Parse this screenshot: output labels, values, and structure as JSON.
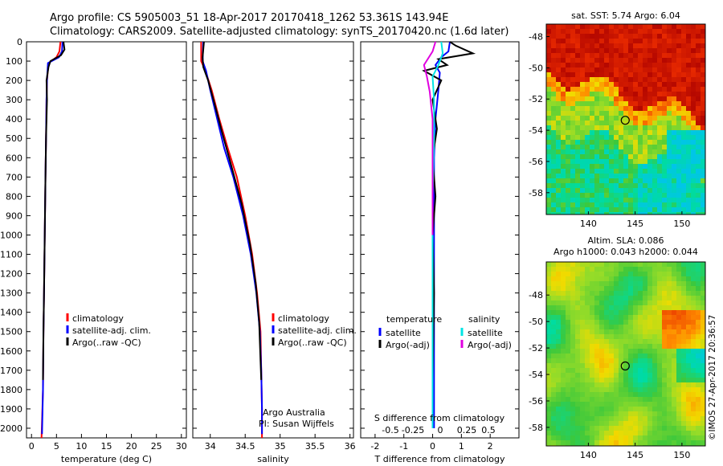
{
  "header": {
    "line1": "Argo profile: CS 5905003_51 18-Apr-2017 20170418_1262 53.361S 143.94E",
    "line2": "Climatology: CARS2009. Satellite-adjusted climatology: synTS_20170420.nc (1.6d later)"
  },
  "chart_data": [
    {
      "type": "line",
      "name": "temperature-panel",
      "xlabel": "temperature (deg C)",
      "ylabel": "",
      "xlim": [
        -1,
        31
      ],
      "ylim": [
        2050,
        0
      ],
      "xticks": [
        0,
        5,
        10,
        15,
        20,
        25,
        30
      ],
      "yticks": [
        0,
        100,
        200,
        300,
        400,
        500,
        600,
        700,
        800,
        900,
        1000,
        1100,
        1200,
        1300,
        1400,
        1500,
        1600,
        1700,
        1800,
        1900,
        2000
      ],
      "legend": [
        "climatology",
        "satellite-adj. clim.",
        "Argo(..raw -QC)"
      ],
      "series": [
        {
          "name": "climatology",
          "color": "#ff0000",
          "x": [
            5.8,
            5.6,
            5.0,
            3.4,
            3.1,
            3.0,
            2.9,
            2.8,
            2.7,
            2.6,
            2.5,
            2.4,
            2.3,
            2.0
          ],
          "y": [
            0,
            50,
            80,
            110,
            200,
            300,
            500,
            700,
            900,
            1100,
            1300,
            1500,
            1800,
            2050
          ]
        },
        {
          "name": "satellite-adj. clim.",
          "color": "#0000ff",
          "x": [
            6.2,
            6.1,
            5.5,
            3.3,
            3.1,
            3.0,
            2.9,
            2.8,
            2.7,
            2.6,
            2.5,
            2.4,
            2.3,
            2.1
          ],
          "y": [
            0,
            50,
            80,
            110,
            200,
            300,
            500,
            700,
            900,
            1100,
            1300,
            1500,
            1800,
            2030
          ]
        },
        {
          "name": "Argo(..raw -QC)",
          "color": "#000000",
          "x": [
            6.4,
            6.6,
            5.9,
            3.8,
            3.4,
            3.0,
            3.1,
            2.9,
            2.8,
            2.7,
            2.6,
            2.5,
            2.4,
            2.3
          ],
          "y": [
            0,
            40,
            70,
            100,
            130,
            200,
            300,
            500,
            700,
            900,
            1100,
            1300,
            1500,
            1750
          ]
        }
      ]
    },
    {
      "type": "line",
      "name": "salinity-panel",
      "xlabel": "salinity",
      "xlim": [
        33.75,
        36.05
      ],
      "ylim": [
        2050,
        0
      ],
      "xticks": [
        34,
        34.5,
        35,
        35.5,
        36
      ],
      "legend": [
        "climatology",
        "satellite-adj. clim.",
        "Argo(..raw -QC)"
      ],
      "annotations": [
        "Argo Australia",
        "PI: Susan Wijffels"
      ],
      "series": [
        {
          "name": "climatology",
          "color": "#ff0000",
          "x": [
            33.87,
            33.87,
            33.93,
            34.02,
            34.13,
            34.25,
            34.38,
            34.5,
            34.6,
            34.67,
            34.72,
            34.73,
            34.74,
            34.74
          ],
          "y": [
            0,
            100,
            150,
            250,
            400,
            550,
            700,
            900,
            1100,
            1300,
            1500,
            1700,
            1900,
            2050
          ]
        },
        {
          "name": "satellite-adj. clim.",
          "color": "#0000ff",
          "x": [
            33.9,
            33.89,
            33.94,
            34.0,
            34.1,
            34.2,
            34.33,
            34.47,
            34.58,
            34.66,
            34.71,
            34.73,
            34.74,
            34.74
          ],
          "y": [
            0,
            100,
            150,
            250,
            400,
            550,
            700,
            900,
            1100,
            1300,
            1500,
            1700,
            1900,
            2030
          ]
        },
        {
          "name": "Argo(..raw -QC)",
          "color": "#000000",
          "x": [
            33.91,
            33.89,
            33.9,
            33.97,
            34.06,
            34.17,
            34.3,
            34.45,
            34.57,
            34.65,
            34.7,
            34.72,
            34.73
          ],
          "y": [
            0,
            80,
            130,
            200,
            320,
            470,
            640,
            840,
            1050,
            1250,
            1450,
            1650,
            1750
          ]
        }
      ]
    },
    {
      "type": "line",
      "name": "difference-panel",
      "xlabel": "T difference from climatology",
      "top_axis_label": "S difference from climatology",
      "xlim": [
        -2.5,
        3.0
      ],
      "ylim": [
        2050,
        0
      ],
      "xticks": [
        -2,
        -1,
        0,
        1,
        2
      ],
      "top_xticks": [
        "-0.5",
        "-0.25",
        "0",
        "0.25",
        "0.5"
      ],
      "legend_headers": [
        "temperature",
        "salinity"
      ],
      "legend": [
        "satellite",
        "Argo(-adj)",
        "satellite",
        "Argo(-adj)"
      ],
      "series": [
        {
          "name": "satellite (temperature)",
          "color": "#0000ff",
          "x": [
            0.6,
            0.55,
            0.3,
            0.1,
            0.25,
            0.2,
            0.1,
            0.05,
            0.05,
            0.05,
            0.05,
            0.05,
            0.05
          ],
          "y": [
            0,
            50,
            80,
            120,
            160,
            250,
            400,
            600,
            900,
            1200,
            1500,
            1800,
            2000
          ]
        },
        {
          "name": "Argo(-adj) (temperature)",
          "color": "#000000",
          "x": [
            0.6,
            0.8,
            1.4,
            0.2,
            0.5,
            -0.3,
            0.3,
            0.0,
            0.15,
            0.0,
            0.1,
            0.0,
            0.05,
            0.0
          ],
          "y": [
            0,
            20,
            60,
            90,
            120,
            150,
            200,
            300,
            450,
            600,
            800,
            1000,
            1300,
            1750
          ]
        },
        {
          "name": "satellite (salinity)",
          "color": "#00e5e5",
          "x": [
            0.3,
            0.35,
            0.2,
            0.0,
            0.05,
            0.05,
            0.0,
            0.0,
            0.0,
            0.0
          ],
          "y": [
            0,
            60,
            120,
            180,
            300,
            500,
            800,
            1100,
            1500,
            2000
          ]
        },
        {
          "name": "Argo(-adj) (salinity)",
          "color": "#e000e0",
          "x": [
            0.1,
            0.0,
            -0.3,
            -0.2,
            -0.1,
            0.0,
            0.0,
            0.0
          ],
          "y": [
            0,
            50,
            120,
            180,
            260,
            400,
            700,
            1000
          ]
        }
      ]
    },
    {
      "type": "heatmap",
      "name": "sst-map",
      "title": "sat. SST: 5.74 Argo: 6.04",
      "xticks": [
        140,
        145,
        150
      ],
      "yticks": [
        -48,
        -50,
        -52,
        -54,
        -56,
        -58
      ],
      "xlim": [
        135.5,
        152.5
      ],
      "ylim": [
        -59.4,
        -47.2
      ],
      "marker": {
        "lon": 143.94,
        "lat": -53.361
      }
    },
    {
      "type": "heatmap",
      "name": "sla-map",
      "title": "Altim. SLA: 0.086",
      "subtitle": "Argo h1000: 0.043 h2000: 0.044",
      "xticks": [
        140,
        145,
        150
      ],
      "yticks": [
        -48,
        -50,
        -52,
        -54,
        -56,
        -58
      ],
      "xlim": [
        135.5,
        152.5
      ],
      "ylim": [
        -59.4,
        -45.5
      ],
      "marker": {
        "lon": 143.94,
        "lat": -53.361
      }
    }
  ],
  "footer": {
    "credit": "©IMOS 27-Apr-2017 20:36:57"
  }
}
